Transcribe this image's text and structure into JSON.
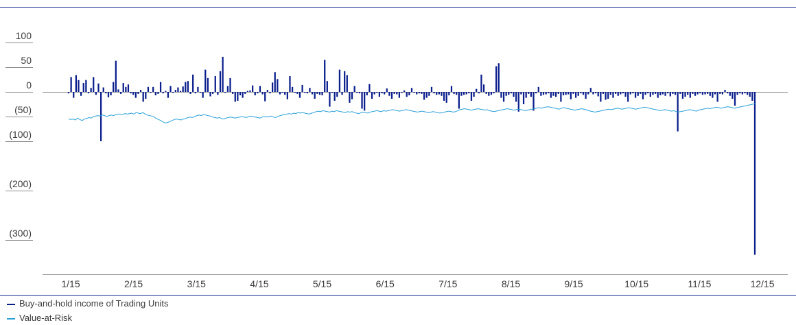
{
  "chart_data": {
    "type": "bar",
    "title": "",
    "xlabel": "",
    "ylabel": "",
    "ylim": [
      -320,
      115
    ],
    "y_ticks": [
      {
        "value": 100,
        "label": "100"
      },
      {
        "value": 50,
        "label": "50"
      },
      {
        "value": 0,
        "label": "0"
      },
      {
        "value": -50,
        "label": "(50)"
      },
      {
        "value": -100,
        "label": "(100)"
      },
      {
        "value": -200,
        "label": "(200)"
      },
      {
        "value": -300,
        "label": "(300)"
      }
    ],
    "x_ticks": [
      "1/15",
      "2/15",
      "3/15",
      "4/15",
      "5/15",
      "6/15",
      "7/15",
      "8/15",
      "9/15",
      "10/15",
      "11/15",
      "12/15"
    ],
    "series": [
      {
        "name": "Buy-and-hold income of Trading Units",
        "type": "bar",
        "color": "#0a1e8c",
        "values": [
          -3,
          30,
          -12,
          34,
          24,
          -8,
          18,
          24,
          -3,
          8,
          30,
          -6,
          17,
          -100,
          9,
          -3,
          -11,
          -7,
          20,
          63,
          5,
          -4,
          18,
          10,
          15,
          -3,
          -6,
          -12,
          -4,
          4,
          -20,
          -14,
          10,
          -2,
          10,
          -7,
          -4,
          20,
          -3,
          2,
          -12,
          12,
          -2,
          4,
          9,
          2,
          11,
          20,
          22,
          -4,
          35,
          -3,
          10,
          -2,
          -12,
          45,
          28,
          -9,
          -4,
          32,
          -6,
          42,
          71,
          -2,
          12,
          28,
          -4,
          -20,
          -18,
          -7,
          -12,
          -4,
          2,
          3,
          13,
          -7,
          -3,
          12,
          -5,
          -19,
          4,
          -3,
          19,
          40,
          26,
          -5,
          -2,
          -6,
          -15,
          32,
          10,
          -2,
          -4,
          -12,
          14,
          -2,
          -3,
          8,
          -5,
          -14,
          -4,
          -6,
          -7,
          65,
          22,
          -30,
          -2,
          -18,
          -10,
          45,
          -6,
          42,
          34,
          -22,
          -15,
          12,
          -2,
          -3,
          -34,
          -38,
          -7,
          16,
          -14,
          -5,
          -2,
          -10,
          -3,
          -5,
          7,
          -8,
          -14,
          -4,
          -5,
          -12,
          -2,
          3,
          -10,
          -7,
          8,
          -2,
          -5,
          -3,
          -4,
          -16,
          -12,
          -8,
          10,
          -3,
          -6,
          -5,
          -8,
          -18,
          -22,
          -7,
          12,
          -4,
          -6,
          -34,
          -8,
          -6,
          -5,
          -3,
          -18,
          -10,
          6,
          -3,
          35,
          15,
          -4,
          -8,
          -6,
          -3,
          52,
          58,
          -12,
          -20,
          -8,
          -6,
          -3,
          -10,
          -20,
          -40,
          -5,
          -25,
          -12,
          -4,
          -10,
          -38,
          -3,
          10,
          -8,
          -6,
          -5,
          -3,
          -12,
          -8,
          -10,
          -4,
          -20,
          -7,
          -6,
          -5,
          -15,
          -4,
          -12,
          -8,
          -3,
          -6,
          -14,
          -5,
          8,
          -5,
          -3,
          -9,
          -20,
          -4,
          -16,
          -14,
          -6,
          -12,
          -4,
          -8,
          -5,
          -3,
          -10,
          -20,
          -5,
          -3,
          -12,
          -8,
          -4,
          -15,
          -6,
          -3,
          -10,
          -6,
          -4,
          -12,
          -7,
          -5,
          -8,
          -3,
          -9,
          -4,
          -6,
          -80,
          -4,
          -14,
          -10,
          -6,
          -12,
          -4,
          -8,
          -5,
          -3,
          -6,
          -5,
          -4,
          -8,
          -12,
          -5,
          -20,
          -4,
          -5,
          4,
          -3,
          -8,
          -14,
          -28,
          -6,
          -3,
          -5,
          -3,
          -6,
          -10,
          -18,
          -330
        ]
      },
      {
        "name": "Value-at-Risk",
        "type": "line",
        "color": "#29a0d8",
        "values": [
          -55,
          -56,
          -55,
          -57,
          -53,
          -56,
          -58,
          -55,
          -54,
          -52,
          -53,
          -50,
          -49,
          -48,
          -49,
          -47,
          -48,
          -50,
          -48,
          -47,
          -48,
          -46,
          -45,
          -45,
          -46,
          -44,
          -45,
          -44,
          -43,
          -45,
          -42,
          -43,
          -44,
          -42,
          -45,
          -47,
          -48,
          -49,
          -51,
          -54,
          -56,
          -58,
          -61,
          -63,
          -62,
          -60,
          -58,
          -56,
          -55,
          -56,
          -57,
          -55,
          -54,
          -52,
          -51,
          -52,
          -50,
          -48,
          -47,
          -48,
          -46,
          -47,
          -48,
          -49,
          -51,
          -52,
          -53,
          -52,
          -54,
          -55,
          -53,
          -52,
          -51,
          -52,
          -53,
          -52,
          -51,
          -50,
          -51,
          -52,
          -50,
          -49,
          -50,
          -51,
          -52,
          -53,
          -51,
          -50,
          -51,
          -50,
          -49,
          -51,
          -52,
          -50,
          -48,
          -47,
          -46,
          -45,
          -44,
          -45,
          -43,
          -44,
          -42,
          -43,
          -42,
          -43,
          -44,
          -45,
          -43,
          -42,
          -40,
          -39,
          -40,
          -38,
          -39,
          -40,
          -41,
          -39,
          -40,
          -38,
          -39,
          -40,
          -41,
          -42,
          -40,
          -41,
          -40,
          -42,
          -43,
          -44,
          -42,
          -41,
          -42,
          -43,
          -41,
          -40,
          -39,
          -38,
          -39,
          -40,
          -38,
          -39,
          -38,
          -37,
          -36,
          -37,
          -38,
          -39,
          -38,
          -37,
          -36,
          -37,
          -38,
          -39,
          -40,
          -41,
          -40,
          -39,
          -40,
          -41,
          -42,
          -41,
          -40,
          -41,
          -42,
          -43,
          -42,
          -41,
          -40,
          -39,
          -40,
          -41,
          -40,
          -38,
          -36,
          -35,
          -34,
          -35,
          -36,
          -37,
          -36,
          -35,
          -34,
          -35,
          -36,
          -37,
          -36,
          -38,
          -39,
          -40,
          -39,
          -38,
          -37,
          -36,
          -35,
          -34,
          -35,
          -36,
          -37,
          -36,
          -35,
          -36,
          -37,
          -38,
          -37,
          -36,
          -35,
          -34,
          -33,
          -32,
          -33,
          -32,
          -31,
          -30,
          -31,
          -32,
          -33,
          -34,
          -35,
          -33,
          -32,
          -33,
          -34,
          -35,
          -36,
          -37,
          -36,
          -35,
          -34,
          -35,
          -36,
          -38,
          -39,
          -40,
          -41,
          -40,
          -39,
          -38,
          -37,
          -36,
          -35,
          -36,
          -35,
          -34,
          -33,
          -34,
          -35,
          -34,
          -33,
          -32,
          -33,
          -34,
          -35,
          -34,
          -33,
          -32,
          -31,
          -32,
          -33,
          -34,
          -35,
          -36,
          -37,
          -38,
          -37,
          -36,
          -37,
          -38,
          -39,
          -38,
          -40,
          -41,
          -40,
          -39,
          -38,
          -37,
          -36,
          -37,
          -38,
          -39,
          -37,
          -36,
          -35,
          -34,
          -33,
          -34,
          -33,
          -32,
          -31,
          -32,
          -33,
          -32,
          -31,
          -30,
          -31,
          -32,
          -33,
          -32,
          -31,
          -30,
          -29,
          -28,
          -27,
          -26,
          -25,
          -24
        ]
      }
    ],
    "legend_position": "bottom-left",
    "grid": false
  },
  "legend": {
    "items": [
      {
        "label": "Buy-and-hold income of Trading Units",
        "color": "#0a1e8c"
      },
      {
        "label": "Value-at-Risk",
        "color": "#29a0d8"
      }
    ]
  }
}
